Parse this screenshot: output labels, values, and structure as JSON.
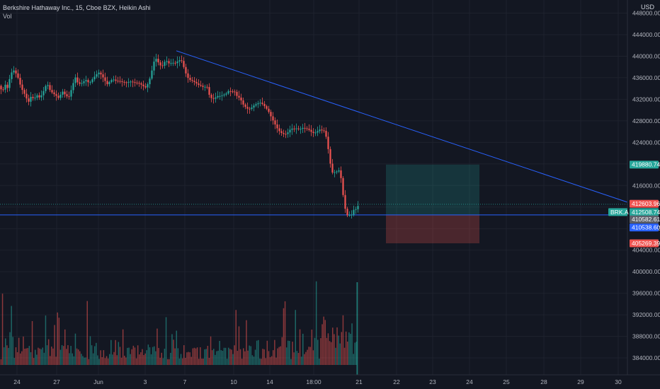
{
  "header": {
    "symbol_info": "Berkshire Hathaway Inc., 15, Cboe BZX, Heikin Ashi",
    "volume_label": "Vol",
    "currency": "USD"
  },
  "colors": {
    "background": "#131722",
    "up": "#26a69a",
    "down": "#ef5350",
    "trendline": "#2962ff",
    "profit_zone": "#26a69a",
    "loss_zone": "#ef5350"
  },
  "chart_data": {
    "type": "candlestick",
    "chart_style": "Heikin Ashi",
    "timeframe": "15",
    "y_axis_ticks": [
      448000,
      444000,
      440000,
      436000,
      432000,
      428000,
      424000,
      420000,
      416000,
      412000,
      408000,
      404000,
      400000,
      396000,
      392000,
      388000,
      384000
    ],
    "y_axis_tick_labels": [
      "448000.00",
      "444000.00",
      "440000.00",
      "436000.00",
      "432000.00",
      "428000.00",
      "424000.00",
      "",
      "416000.00",
      "",
      "408000.00",
      "404000.00",
      "400000.00",
      "396000.00",
      "392000.00",
      "388000.00",
      "384000.00"
    ],
    "ylim": [
      381000,
      450000
    ],
    "x_axis_labels": [
      "24",
      "27",
      "Jun",
      "3",
      "7",
      "10",
      "14",
      "18:00",
      "21",
      "22",
      "23",
      "24",
      "25",
      "28",
      "29",
      "30"
    ],
    "price_badges": [
      {
        "label": "",
        "value": "419880.74",
        "color": "#26a69a",
        "price": 419880.74
      },
      {
        "label": "",
        "value": "412603.96",
        "color": "#ef5350",
        "price": 412603.96
      },
      {
        "label": "BRK.A",
        "value": "412508.74",
        "color": "#26a69a",
        "price": 411060
      },
      {
        "label": "",
        "value": "410582.61",
        "color": "#5d606b",
        "price": 409700
      },
      {
        "label": "",
        "value": "410538.60",
        "color": "#2962ff",
        "price": 408200
      },
      {
        "label": "",
        "value": "405269.39",
        "color": "#ef5350",
        "price": 405269.39
      }
    ],
    "trendline": {
      "from": {
        "x": "7",
        "price": 441000
      },
      "to": {
        "x": "30",
        "price": 413000
      }
    },
    "horizontal_line": {
      "price": 410538.6
    },
    "current_price_line": {
      "price": 412508.74
    },
    "position_tool": {
      "entry": 410538.6,
      "target": 419880.74,
      "stop": 405269.39,
      "from_x": "22",
      "to_x": "24.5"
    },
    "close_path": [
      [
        0,
        434500
      ],
      [
        3,
        433200
      ],
      [
        7,
        434800
      ],
      [
        11,
        434000
      ],
      [
        15,
        436800
      ],
      [
        20,
        437400
      ],
      [
        25,
        436200
      ],
      [
        30,
        434100
      ],
      [
        35,
        432900
      ],
      [
        40,
        431400
      ],
      [
        44,
        432600
      ],
      [
        48,
        432000
      ],
      [
        52,
        432800
      ],
      [
        56,
        432300
      ],
      [
        60,
        433000
      ],
      [
        64,
        434400
      ],
      [
        67,
        434800
      ],
      [
        70,
        433800
      ],
      [
        74,
        433200
      ],
      [
        79,
        432700
      ],
      [
        83,
        432200
      ],
      [
        88,
        433500
      ],
      [
        93,
        432700
      ],
      [
        97,
        432300
      ],
      [
        102,
        434300
      ],
      [
        106,
        436200
      ],
      [
        110,
        435000
      ],
      [
        114,
        434800
      ],
      [
        118,
        435300
      ],
      [
        122,
        435600
      ],
      [
        126,
        434900
      ],
      [
        131,
        435800
      ],
      [
        136,
        436600
      ],
      [
        140,
        437000
      ],
      [
        144,
        436400
      ],
      [
        148,
        435500
      ],
      [
        152,
        434700
      ],
      [
        156,
        435500
      ],
      [
        160,
        435700
      ],
      [
        164,
        435400
      ],
      [
        168,
        435400
      ],
      [
        173,
        435200
      ],
      [
        178,
        435100
      ],
      [
        184,
        435300
      ],
      [
        190,
        435100
      ],
      [
        196,
        435000
      ],
      [
        201,
        434600
      ],
      [
        205,
        434100
      ],
      [
        209,
        434900
      ],
      [
        213,
        436400
      ],
      [
        217,
        438900
      ],
      [
        221,
        439600
      ],
      [
        225,
        438400
      ],
      [
        229,
        438100
      ],
      [
        234,
        439300
      ],
      [
        239,
        438600
      ],
      [
        243,
        438800
      ],
      [
        248,
        438700
      ],
      [
        252,
        439200
      ],
      [
        256,
        439300
      ],
      [
        260,
        437800
      ],
      [
        264,
        436200
      ],
      [
        268,
        435600
      ],
      [
        272,
        435400
      ],
      [
        276,
        435100
      ],
      [
        280,
        434700
      ],
      [
        284,
        434500
      ],
      [
        288,
        434200
      ],
      [
        292,
        434500
      ],
      [
        296,
        432600
      ],
      [
        300,
        432000
      ],
      [
        303,
        432200
      ],
      [
        307,
        432600
      ],
      [
        311,
        432600
      ],
      [
        315,
        432800
      ],
      [
        319,
        433000
      ],
      [
        323,
        433600
      ],
      [
        327,
        433400
      ],
      [
        331,
        433500
      ],
      [
        335,
        432500
      ],
      [
        339,
        432200
      ],
      [
        343,
        431100
      ],
      [
        347,
        430500
      ],
      [
        351,
        430100
      ],
      [
        355,
        430400
      ],
      [
        359,
        430900
      ],
      [
        363,
        431200
      ],
      [
        367,
        431400
      ],
      [
        371,
        431100
      ],
      [
        375,
        430500
      ],
      [
        379,
        429800
      ],
      [
        383,
        428700
      ],
      [
        387,
        427700
      ],
      [
        391,
        426700
      ],
      [
        395,
        426000
      ],
      [
        399,
        425600
      ],
      [
        403,
        425500
      ],
      [
        407,
        425900
      ],
      [
        411,
        426600
      ],
      [
        415,
        426500
      ],
      [
        419,
        426600
      ],
      [
        423,
        426400
      ],
      [
        427,
        426700
      ],
      [
        431,
        426600
      ],
      [
        435,
        426500
      ],
      [
        439,
        426000
      ],
      [
        443,
        425700
      ],
      [
        447,
        425900
      ],
      [
        451,
        426400
      ],
      [
        455,
        426200
      ],
      [
        459,
        426100
      ],
      [
        462,
        424000
      ],
      [
        465,
        421500
      ],
      [
        468,
        418600
      ],
      [
        471,
        418200
      ],
      [
        474,
        418700
      ],
      [
        477,
        418500
      ],
      [
        480,
        419100
      ],
      [
        482,
        416800
      ],
      [
        484,
        414700
      ],
      [
        486,
        412800
      ],
      [
        488,
        411300
      ],
      [
        490,
        410500
      ],
      [
        492,
        410300
      ],
      [
        494,
        410600
      ],
      [
        496,
        410400
      ],
      [
        498,
        411100
      ],
      [
        500,
        411600
      ],
      [
        502,
        411500
      ],
      [
        504,
        411900
      ],
      [
        506,
        412300
      ],
      [
        508,
        412500
      ]
    ],
    "volume_max": 395500,
    "volume_base": 382000
  }
}
